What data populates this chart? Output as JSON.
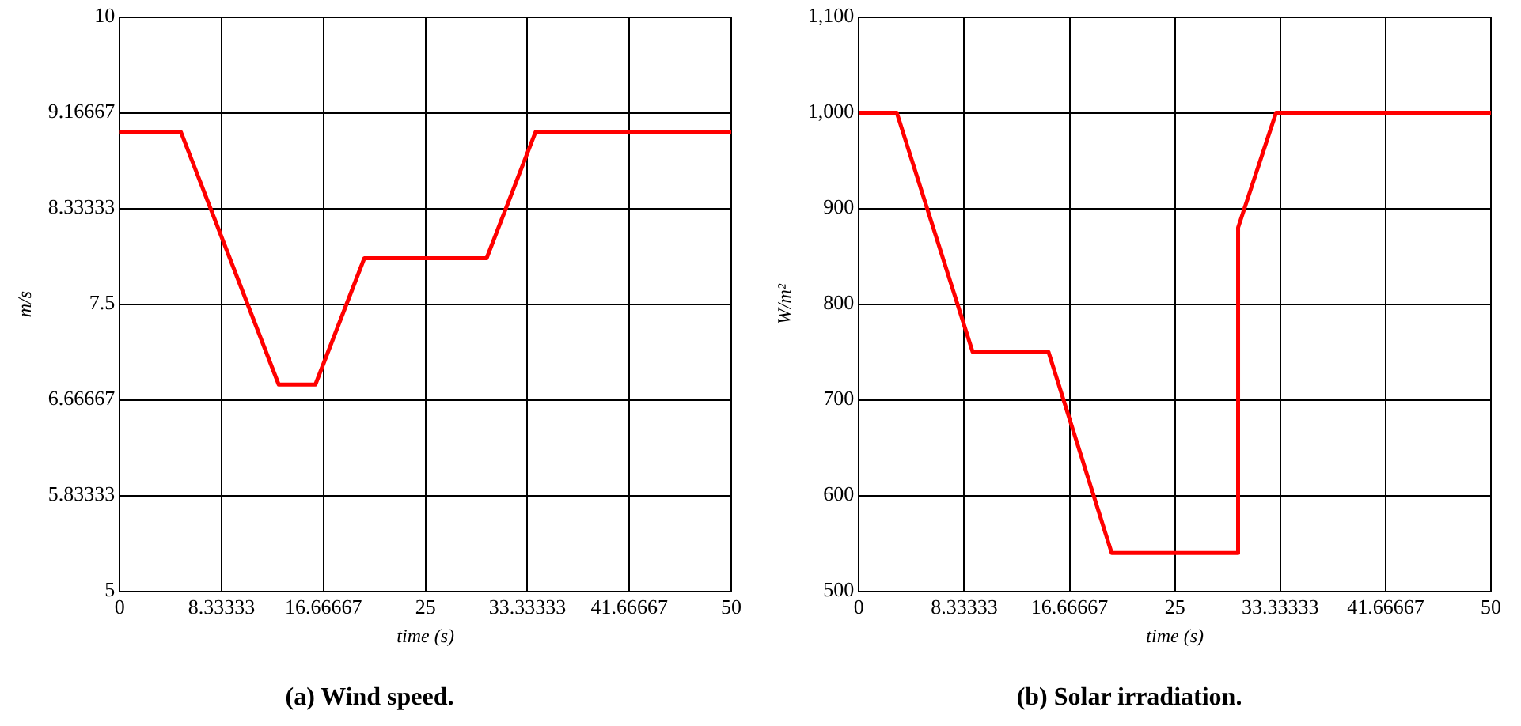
{
  "chart_data": [
    {
      "type": "line",
      "title": "(a) Wind speed.",
      "xlabel": "time (s)",
      "ylabel": "m/s",
      "x": [
        0,
        5,
        13,
        16,
        20,
        30,
        34,
        50
      ],
      "series": [
        {
          "color": "#ff0000",
          "values": [
            9.0,
            9.0,
            6.8,
            6.8,
            7.9,
            7.9,
            9.0,
            9.0
          ]
        }
      ],
      "xlim": [
        0,
        50
      ],
      "xticks": [
        0,
        8.33333,
        16.66667,
        25,
        33.33333,
        41.66667,
        50
      ],
      "ylim": [
        5,
        10
      ],
      "yticks": [
        5,
        5.83333,
        6.66667,
        7.5,
        8.33333,
        9.16667,
        10
      ],
      "grid": true,
      "legend": false,
      "marker": "none",
      "line_style": "solid"
    },
    {
      "type": "line",
      "title": "(b) Solar irradiation.",
      "xlabel": "time (s)",
      "ylabel": "W/m²",
      "x": [
        0,
        3,
        9,
        15,
        20,
        30,
        30,
        33,
        50
      ],
      "series": [
        {
          "color": "#ff0000",
          "values": [
            1000,
            1000,
            750,
            750,
            540,
            540,
            880,
            1000,
            1000
          ]
        }
      ],
      "xlim": [
        0,
        50
      ],
      "xticks": [
        0,
        8.33333,
        16.66667,
        25,
        33.33333,
        41.66667,
        50
      ],
      "ylim": [
        500,
        1100
      ],
      "yticks": [
        500,
        600,
        700,
        800,
        900,
        {
          "value": 1000,
          "label": "1,000"
        },
        {
          "value": 1100,
          "label": "1,100"
        }
      ],
      "grid": true,
      "legend": false,
      "marker": "none",
      "line_style": "solid"
    }
  ]
}
